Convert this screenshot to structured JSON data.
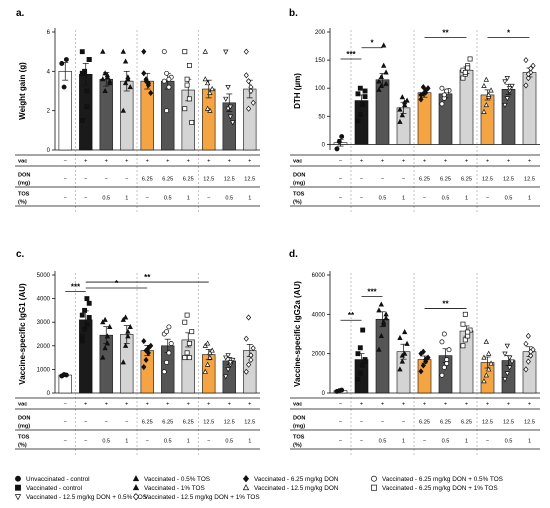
{
  "colors": {
    "white": "#ffffff",
    "black": "#1a1a1a",
    "dark_gray": "#555555",
    "light_gray": "#d4d4d4",
    "orange": "#f5a443"
  },
  "table_labels": {
    "vac": "vac",
    "don_top": "DON",
    "don_bottom": "(mg)",
    "tos_top": "TOS",
    "tos_bottom": "(%)"
  },
  "table_rows": {
    "vac": [
      "−",
      "+",
      "+",
      "+",
      "+",
      "+",
      "+",
      "+",
      "+",
      "+"
    ],
    "don": [
      "−",
      "−",
      "−",
      "−",
      "6.25",
      "6.25",
      "6.25",
      "12.5",
      "12.5",
      "12.5"
    ],
    "tos": [
      "−",
      "−",
      "0.5",
      "1",
      "−",
      "0.5",
      "1",
      "−",
      "0.5",
      "1"
    ]
  },
  "legend": [
    {
      "symbol": "circle-filled",
      "label": "Unvaccinated - control"
    },
    {
      "symbol": "triangle-filled",
      "label": "Vaccinated - 0.5% TOS"
    },
    {
      "symbol": "diamond-filled",
      "label": "Vaccinated - 6.25 mg/kg DON"
    },
    {
      "symbol": "circle-open",
      "label": "Vaccinated - 6.25 mg/kg DON + 0.5% TOS"
    },
    {
      "symbol": "square-filled",
      "label": "Vaccinated - control"
    },
    {
      "symbol": "triangle-filled",
      "label": "Vaccinated - 1%   TOS"
    },
    {
      "symbol": "triangle-open",
      "label": "Vaccinated - 12.5 mg/kg DON"
    },
    {
      "symbol": "square-open",
      "label": "Vaccinated - 6.25 mg/kg DON + 1%   TOS"
    },
    {
      "symbol": "triangle-down-open",
      "label": "Vaccinated - 12.5 mg/kg DON + 0.5% TOS"
    },
    {
      "symbol": "diamond-open",
      "label": "Vaccinated - 12.5 mg/kg DON + 1% TOS"
    }
  ],
  "chart_data": [
    {
      "panel": "a.",
      "type": "bar",
      "ylabel": "Weight gain (g)",
      "ylim": [
        0,
        6
      ],
      "yticks": [
        0,
        2,
        4,
        6
      ],
      "values": [
        4.0,
        3.85,
        3.6,
        3.5,
        3.5,
        3.5,
        3.05,
        3.1,
        2.4,
        3.1
      ],
      "errors": [
        0.45,
        0.55,
        0.35,
        0.5,
        0.4,
        0.4,
        0.55,
        0.45,
        0.45,
        0.45
      ],
      "points": [
        [
          4.4,
          3.2,
          4.6
        ],
        [
          5.0,
          3.9,
          2.2,
          4.6,
          3.9,
          4.0,
          3.0,
          4.6,
          1.5
        ],
        [
          5.0,
          3.9,
          3.7,
          3.4,
          3.6,
          3.0,
          3.8,
          3.5
        ],
        [
          5.0,
          4.5,
          3.6,
          3.2,
          2.0,
          3.4,
          3.7
        ],
        [
          5.0,
          3.6,
          3.3,
          2.9,
          3.9,
          3.5,
          3.4
        ],
        [
          5.0,
          3.9,
          3.2,
          3.7,
          3.5,
          2.0,
          3.6
        ],
        [
          5.0,
          3.6,
          2.6,
          1.4,
          2.1,
          3.3,
          4.3
        ],
        [
          5.0,
          3.4,
          2.0,
          3.1,
          3.6,
          2.1,
          2.9
        ],
        [
          5.0,
          2.1,
          1.7,
          1.4,
          2.6,
          3.2,
          2.2
        ],
        [
          5.0,
          3.5,
          3.2,
          2.4,
          3.8,
          2.1,
          3.0
        ]
      ],
      "significance": []
    },
    {
      "panel": "b.",
      "type": "bar",
      "ylabel": "DTH (µm)",
      "ylim": [
        -10,
        200
      ],
      "yticks": [
        0,
        50,
        100,
        150,
        200
      ],
      "values": [
        3,
        78,
        115,
        65,
        92,
        90,
        132,
        88,
        98,
        128
      ],
      "errors": [
        6,
        10,
        11,
        10,
        8,
        7,
        6,
        9,
        9,
        8
      ],
      "points": [
        [
          -8,
          5,
          14
        ],
        [
          42,
          53,
          72,
          85,
          90,
          100,
          71,
          95
        ],
        [
          97,
          120,
          140,
          108,
          112,
          104,
          176,
          128
        ],
        [
          40,
          52,
          70,
          78,
          62,
          84,
          75
        ],
        [
          80,
          90,
          96,
          100,
          88,
          102,
          92
        ],
        [
          72,
          82,
          92,
          96,
          100,
          88,
          95
        ],
        [
          118,
          125,
          140,
          152,
          132,
          128,
          136
        ],
        [
          58,
          70,
          85,
          96,
          104,
          115,
          88
        ],
        [
          70,
          82,
          95,
          104,
          112,
          118,
          100
        ],
        [
          105,
          118,
          128,
          140,
          150,
          125,
          135
        ]
      ],
      "significance": [
        {
          "label": "***",
          "from": 0,
          "to": 1,
          "y": 152
        },
        {
          "label": "*",
          "from": 1,
          "to": 2,
          "y": 172
        },
        {
          "label": "**",
          "from": 4,
          "to": 6,
          "y": 190
        },
        {
          "label": "*",
          "from": 7,
          "to": 9,
          "y": 190
        }
      ]
    },
    {
      "panel": "c.",
      "type": "bar",
      "ylabel": "Vaccine-specific IgG1 (AU)",
      "ylim": [
        0,
        5000
      ],
      "yticks": [
        0,
        1000,
        2000,
        3000,
        4000,
        5000
      ],
      "values": [
        760,
        3100,
        2450,
        2480,
        1800,
        2000,
        2250,
        1630,
        1360,
        1800
      ],
      "errors": [
        40,
        380,
        360,
        380,
        220,
        280,
        300,
        220,
        150,
        260
      ],
      "points": [
        [
          720,
          780,
          760
        ],
        [
          2200,
          2700,
          2900,
          3200,
          3300,
          3500,
          4000,
          3800,
          2400
        ],
        [
          1500,
          1900,
          2400,
          2800,
          3000,
          3100,
          2100
        ],
        [
          1300,
          2000,
          2400,
          2800,
          3100,
          3200,
          2600
        ],
        [
          1100,
          1400,
          1700,
          2000,
          2200,
          1800,
          1900
        ],
        [
          900,
          1300,
          1700,
          2100,
          2500,
          2600,
          2800
        ],
        [
          1500,
          1700,
          2100,
          2600,
          3000,
          3300,
          1500
        ],
        [
          900,
          1200,
          1500,
          1800,
          2000,
          2100,
          1700
        ],
        [
          700,
          1000,
          1200,
          1400,
          1500,
          1600,
          1300
        ],
        [
          900,
          1200,
          1600,
          1900,
          2300,
          3200,
          1400
        ]
      ],
      "significance": [
        {
          "label": "***",
          "from": 0,
          "to": 1,
          "y": 4300
        },
        {
          "label": "*",
          "from": 1,
          "to": 4,
          "y": 4450
        },
        {
          "label": "**",
          "from": 1,
          "to": 7,
          "y": 4700
        }
      ]
    },
    {
      "panel": "d.",
      "type": "bar",
      "ylabel": "Vaccine-specific IgG2a (AU)",
      "ylim": [
        0,
        6000
      ],
      "yticks": [
        0,
        2000,
        4000,
        6000
      ],
      "values": [
        120,
        1700,
        3750,
        2100,
        1700,
        1900,
        3150,
        1550,
        1650,
        2100
      ],
      "errors": [
        30,
        300,
        380,
        380,
        180,
        350,
        260,
        280,
        250,
        250
      ],
      "points": [
        [
          80,
          120,
          150
        ],
        [
          700,
          1000,
          1400,
          1700,
          2000,
          2300,
          3200,
          1600
        ],
        [
          2200,
          2900,
          3600,
          4000,
          4200,
          4500,
          3500,
          3800
        ],
        [
          1200,
          1600,
          2000,
          2500,
          2800,
          1900,
          3100
        ],
        [
          1100,
          1400,
          1600,
          1800,
          2000,
          2100,
          1700
        ],
        [
          900,
          1300,
          1700,
          2200,
          2600,
          3000,
          1500
        ],
        [
          2400,
          2700,
          2900,
          3200,
          3500,
          4000,
          3100
        ],
        [
          600,
          900,
          1200,
          1500,
          1800,
          2600,
          2000
        ],
        [
          700,
          1000,
          1300,
          1600,
          2000,
          2400,
          1800
        ],
        [
          1200,
          1600,
          1900,
          2200,
          2500,
          2900,
          2100
        ]
      ],
      "significance": [
        {
          "label": "**",
          "from": 0,
          "to": 1,
          "y": 3700
        },
        {
          "label": "***",
          "from": 1,
          "to": 2,
          "y": 4900
        },
        {
          "label": "**",
          "from": 4,
          "to": 6,
          "y": 4300
        }
      ]
    }
  ]
}
